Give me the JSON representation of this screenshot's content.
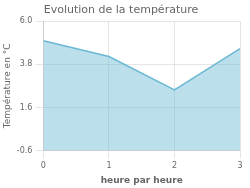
{
  "chart_data": {
    "type": "area",
    "title": "Evolution de la température",
    "xlabel": "heure par heure",
    "ylabel": "Température en °C",
    "x": [
      0,
      1,
      2,
      3
    ],
    "values": [
      5.0,
      4.2,
      2.5,
      4.6
    ],
    "color": "#6bb8d4",
    "xlim": [
      0,
      3
    ],
    "xticks": [
      0,
      1,
      2,
      3
    ],
    "ylim": [
      -0.6,
      6.0
    ],
    "yticks": [
      -0.6,
      1.6,
      3.8,
      {
        "value": 6.0,
        "label": "6.0"
      }
    ],
    "grid": true
  }
}
